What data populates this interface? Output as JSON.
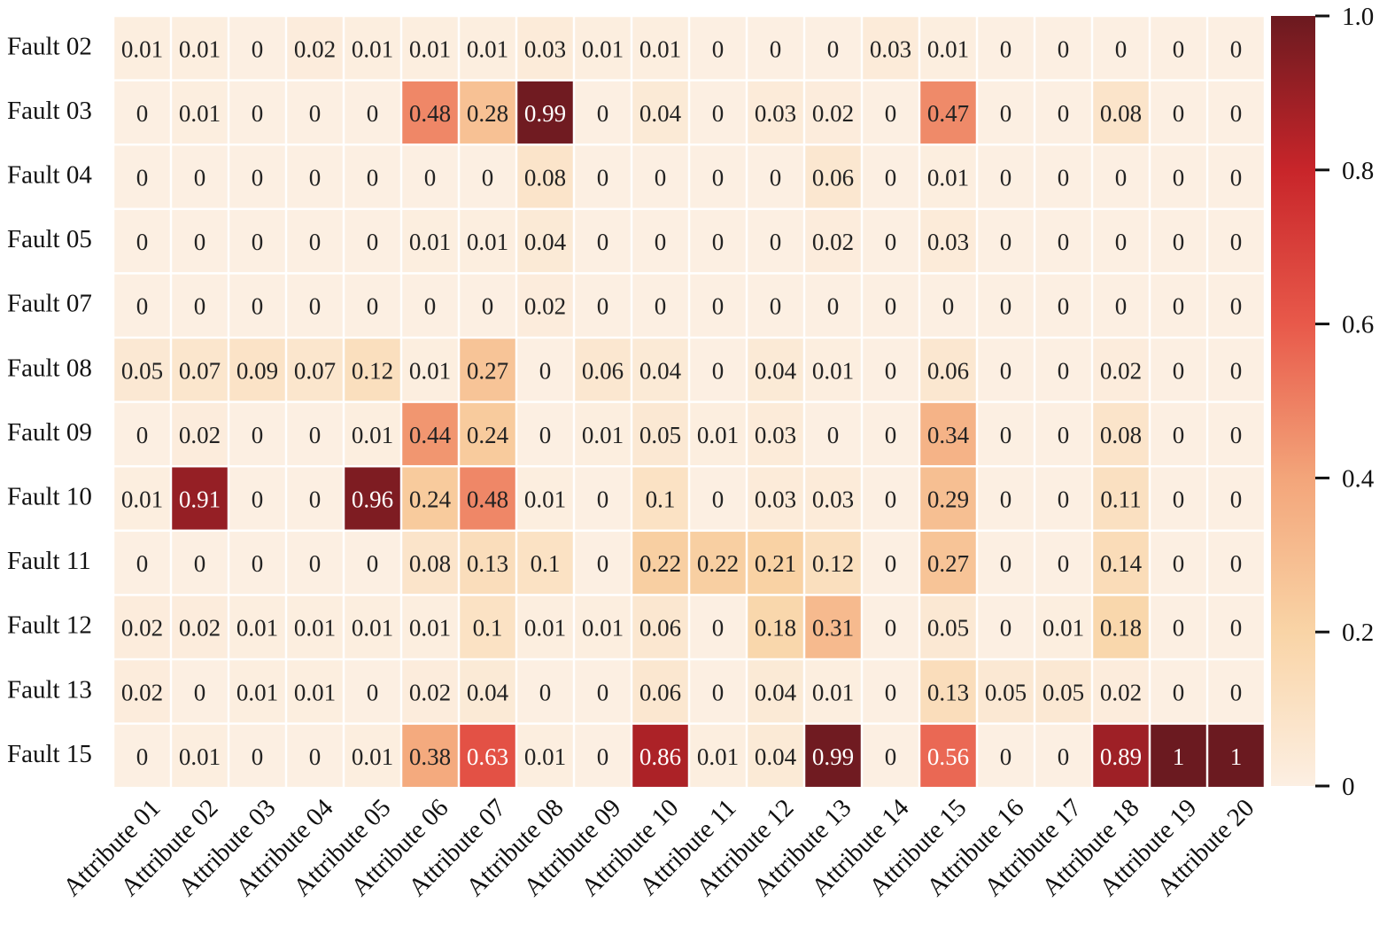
{
  "chart_data": {
    "type": "heatmap",
    "title": "",
    "xlabel": "",
    "ylabel": "",
    "rows": [
      "Fault 02",
      "Fault 03",
      "Fault 04",
      "Fault 05",
      "Fault 07",
      "Fault 08",
      "Fault 09",
      "Fault 10",
      "Fault 11",
      "Fault 12",
      "Fault 13",
      "Fault 15"
    ],
    "columns": [
      "Attribute 01",
      "Attribute 02",
      "Attribute 03",
      "Attribute 04",
      "Attribute 05",
      "Attribute 06",
      "Attribute 07",
      "Attribute 08",
      "Attribute 09",
      "Attribute 10",
      "Attribute 11",
      "Attribute 12",
      "Attribute 13",
      "Attribute 14",
      "Attribute 15",
      "Attribute 16",
      "Attribute 17",
      "Attribute 18",
      "Attribute 19",
      "Attribute 20"
    ],
    "values": [
      [
        0.01,
        0.01,
        0,
        0.02,
        0.01,
        0.01,
        0.01,
        0.03,
        0.01,
        0.01,
        0,
        0,
        0,
        0.03,
        0.01,
        0,
        0,
        0,
        0,
        0
      ],
      [
        0,
        0.01,
        0,
        0,
        0,
        0.48,
        0.28,
        0.99,
        0,
        0.04,
        0,
        0.03,
        0.02,
        0,
        0.47,
        0,
        0,
        0.08,
        0,
        0
      ],
      [
        0,
        0,
        0,
        0,
        0,
        0,
        0,
        0.08,
        0,
        0,
        0,
        0,
        0.06,
        0,
        0.01,
        0,
        0,
        0,
        0,
        0
      ],
      [
        0,
        0,
        0,
        0,
        0,
        0.01,
        0.01,
        0.04,
        0,
        0,
        0,
        0,
        0.02,
        0,
        0.03,
        0,
        0,
        0,
        0,
        0
      ],
      [
        0,
        0,
        0,
        0,
        0,
        0,
        0,
        0.02,
        0,
        0,
        0,
        0,
        0,
        0,
        0,
        0,
        0,
        0,
        0,
        0
      ],
      [
        0.05,
        0.07,
        0.09,
        0.07,
        0.12,
        0.01,
        0.27,
        0,
        0.06,
        0.04,
        0,
        0.04,
        0.01,
        0,
        0.06,
        0,
        0,
        0.02,
        0,
        0
      ],
      [
        0,
        0.02,
        0,
        0,
        0.01,
        0.44,
        0.24,
        0,
        0.01,
        0.05,
        0.01,
        0.03,
        0,
        0,
        0.34,
        0,
        0,
        0.08,
        0,
        0
      ],
      [
        0.01,
        0.91,
        0,
        0,
        0.96,
        0.24,
        0.48,
        0.01,
        0,
        0.1,
        0,
        0.03,
        0.03,
        0,
        0.29,
        0,
        0,
        0.11,
        0,
        0
      ],
      [
        0,
        0,
        0,
        0,
        0,
        0.08,
        0.13,
        0.1,
        0,
        0.22,
        0.22,
        0.21,
        0.12,
        0,
        0.27,
        0,
        0,
        0.14,
        0,
        0
      ],
      [
        0.02,
        0.02,
        0.01,
        0.01,
        0.01,
        0.01,
        0.1,
        0.01,
        0.01,
        0.06,
        0,
        0.18,
        0.31,
        0,
        0.05,
        0,
        0.01,
        0.18,
        0,
        0
      ],
      [
        0.02,
        0,
        0.01,
        0.01,
        0,
        0.02,
        0.04,
        0,
        0,
        0.06,
        0,
        0.04,
        0.01,
        0,
        0.13,
        0.05,
        0.05,
        0.02,
        0,
        0
      ],
      [
        0,
        0.01,
        0,
        0,
        0.01,
        0.38,
        0.63,
        0.01,
        0,
        0.86,
        0.01,
        0.04,
        0.99,
        0,
        0.56,
        0,
        0,
        0.89,
        1,
        1
      ]
    ],
    "value_range": [
      0,
      1.0
    ],
    "colorbar": {
      "ticks": [
        0,
        0.2,
        0.4,
        0.6,
        0.8,
        1.0
      ],
      "tick_labels": [
        "0",
        "0.2",
        "0.4",
        "0.6",
        "0.8",
        "1.0"
      ]
    },
    "colormap": [
      "#fcefe2",
      "#f9d4a6",
      "#f3a57a",
      "#e8594a",
      "#c8252a",
      "#6b1a20"
    ],
    "annotations": true
  }
}
